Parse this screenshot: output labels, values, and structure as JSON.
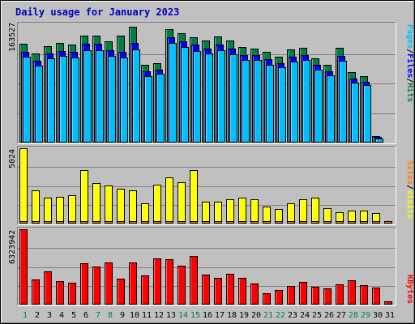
{
  "chart_data": [
    {
      "type": "bar",
      "title": "Daily usage for January 2023",
      "categories": [
        "1",
        "2",
        "3",
        "4",
        "5",
        "6",
        "7",
        "8",
        "9",
        "10",
        "11",
        "12",
        "13",
        "14",
        "15",
        "16",
        "17",
        "18",
        "19",
        "20",
        "21",
        "22",
        "23",
        "24",
        "25",
        "26",
        "27",
        "28",
        "29",
        "30",
        "31"
      ],
      "weekend_days": [
        "1",
        "7",
        "8",
        "14",
        "15",
        "21",
        "22",
        "28",
        "29"
      ],
      "ymax_label": "163527",
      "ymax": 163527,
      "legend": [
        "Pages",
        "Files",
        "Hits"
      ],
      "series": [
        {
          "name": "Hits",
          "color": "#008040",
          "values": [
            137000,
            123000,
            133000,
            138000,
            135000,
            148000,
            148000,
            140000,
            148000,
            160000,
            108000,
            110000,
            157000,
            151000,
            146000,
            141000,
            147000,
            141000,
            132000,
            130000,
            126000,
            119000,
            129000,
            131000,
            116000,
            108000,
            131000,
            98000,
            92000,
            9000,
            0
          ]
        },
        {
          "name": "Files",
          "color": "#0000ff",
          "values": [
            126000,
            113000,
            123000,
            127000,
            125000,
            137000,
            137000,
            128000,
            125000,
            138000,
            99000,
            101000,
            146000,
            140000,
            135000,
            130000,
            135000,
            130000,
            121000,
            121000,
            115000,
            110000,
            119000,
            121000,
            107000,
            99000,
            120000,
            89000,
            84000,
            7500,
            0
          ]
        },
        {
          "name": "Pages",
          "color": "#00bfff",
          "values": [
            119000,
            106000,
            116000,
            120000,
            118000,
            128000,
            128000,
            120000,
            118000,
            129000,
            92000,
            95000,
            138000,
            132000,
            127000,
            123000,
            128000,
            122000,
            114000,
            114000,
            108000,
            104000,
            112000,
            114000,
            101000,
            93000,
            113000,
            83000,
            79000,
            5500,
            0
          ]
        }
      ]
    },
    {
      "type": "bar",
      "ymax_label": "5024",
      "ymax": 5024,
      "legend": [
        "Sites",
        "Visits"
      ],
      "series": [
        {
          "name": "Visits",
          "color": "#ffff00",
          "values": [
            5024,
            2230,
            1740,
            1780,
            1900,
            3580,
            2690,
            2560,
            2340,
            2190,
            1340,
            2600,
            3090,
            2750,
            3580,
            1480,
            1480,
            1640,
            1710,
            1620,
            1110,
            950,
            1350,
            1610,
            1710,
            1040,
            750,
            850,
            880,
            700,
            170
          ]
        },
        {
          "name": "Sites",
          "color": "#ff8000",
          "values": [
            120,
            120,
            120,
            120,
            120,
            120,
            120,
            120,
            120,
            120,
            120,
            120,
            120,
            120,
            120,
            120,
            120,
            120,
            120,
            120,
            120,
            120,
            120,
            120,
            120,
            120,
            120,
            120,
            120,
            120,
            60
          ]
        }
      ]
    },
    {
      "type": "bar",
      "ymax_label": "6323942",
      "ymax": 6323942,
      "legend": [
        "KBytes"
      ],
      "series": [
        {
          "name": "KBytes",
          "color": "#ff0000",
          "values": [
            6323942,
            2115000,
            2819000,
            1979000,
            1808000,
            3462000,
            3181000,
            3550000,
            2187000,
            3550000,
            2419000,
            3870000,
            3816000,
            3275000,
            4093000,
            2546000,
            2256000,
            2590000,
            2214000,
            1766000,
            967000,
            1196000,
            1585000,
            1917000,
            1494000,
            1357000,
            1679000,
            2013000,
            1603000,
            1426000,
            260000
          ]
        }
      ]
    }
  ]
}
